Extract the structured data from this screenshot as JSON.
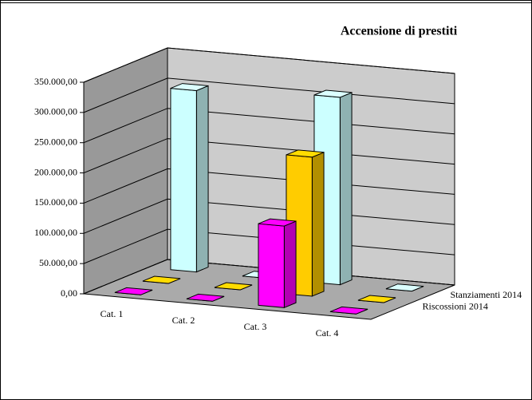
{
  "chart_data": {
    "type": "bar3d",
    "title": "Accensione di prestiti",
    "categories": [
      "Cat. 1",
      "Cat. 2",
      "Cat. 3",
      "Cat. 4"
    ],
    "series": [
      {
        "color": "#ff00ff",
        "values": [
          0,
          0,
          135000,
          0
        ]
      },
      {
        "name": "Riscossioni   2014",
        "color": "#ffcc00",
        "values": [
          0,
          0,
          230000,
          0
        ]
      },
      {
        "name": "Stanziamenti 2014",
        "color": "#ccffff",
        "values": [
          300000,
          0,
          310000,
          0
        ]
      }
    ],
    "ylim": [
      0,
      350000
    ],
    "yticks": [
      {
        "value": 0,
        "label": "0,00"
      },
      {
        "value": 50000,
        "label": "50.000,00"
      },
      {
        "value": 100000,
        "label": "100.000,00"
      },
      {
        "value": 150000,
        "label": "150.000,00"
      },
      {
        "value": 200000,
        "label": "200.000,00"
      },
      {
        "value": 250000,
        "label": "250.000,00"
      },
      {
        "value": 300000,
        "label": "300.000,00"
      },
      {
        "value": 350000,
        "label": "350.000,00"
      }
    ],
    "grid": true
  }
}
